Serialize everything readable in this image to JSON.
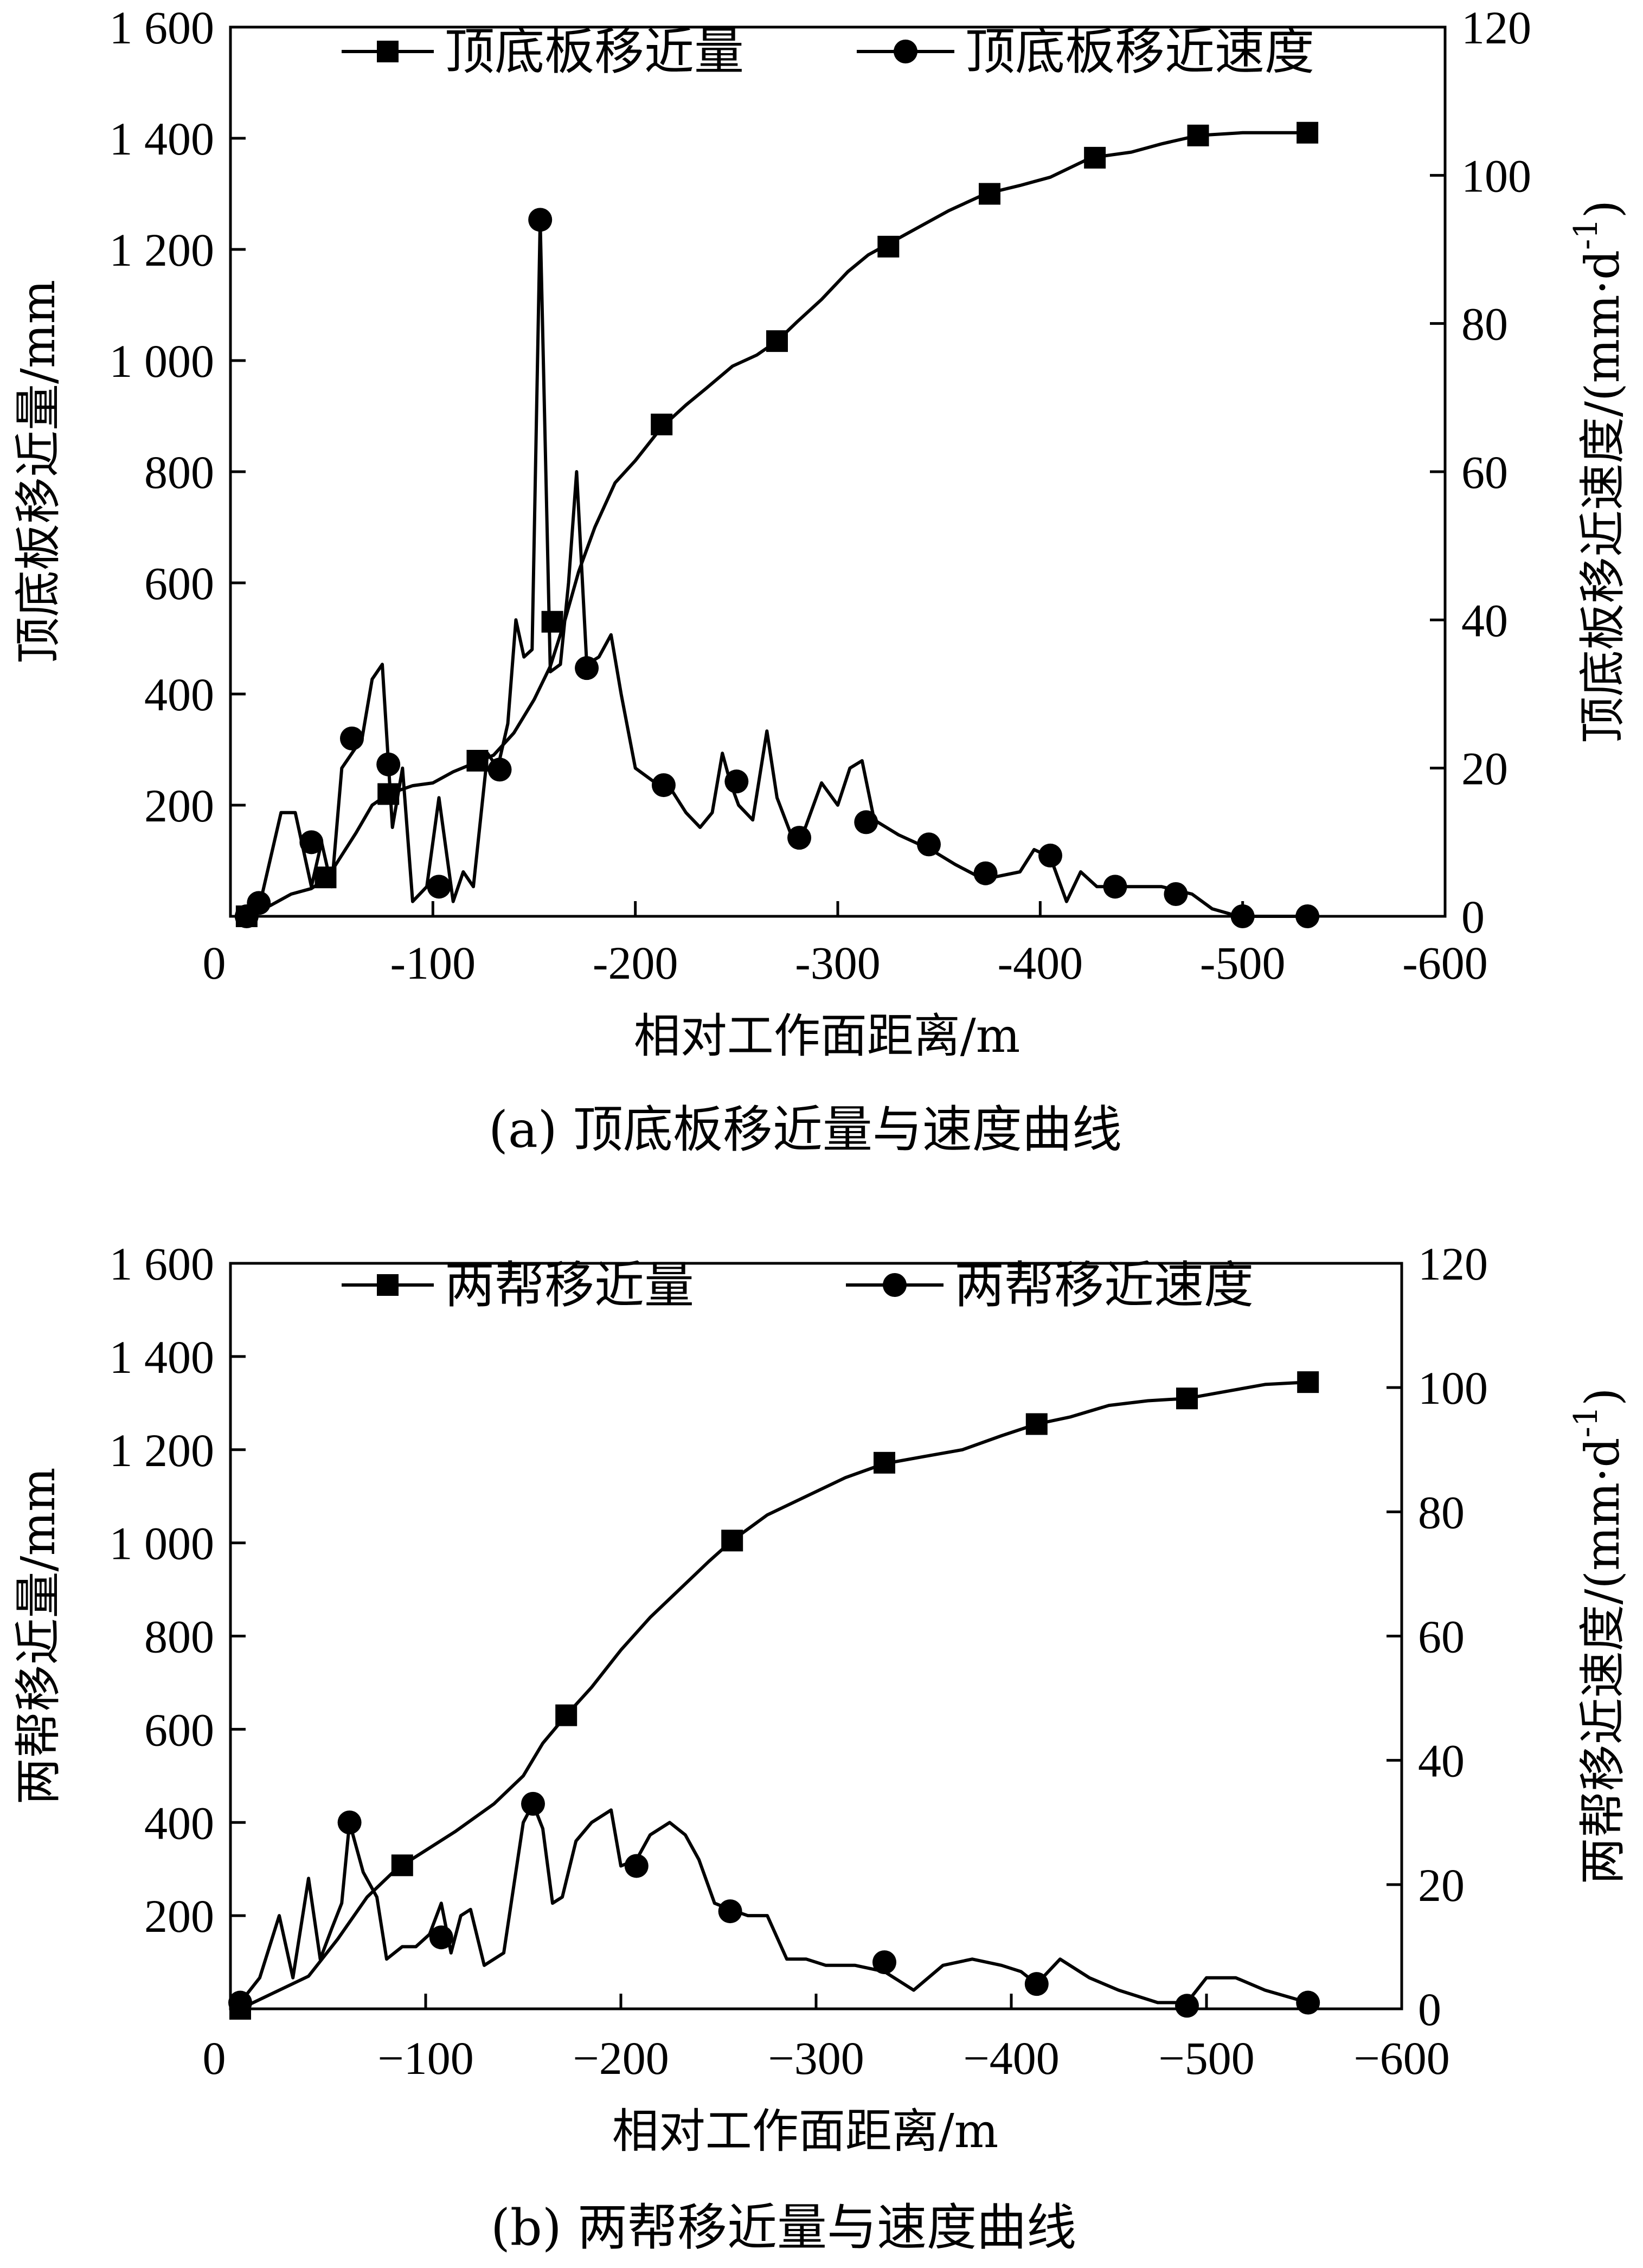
{
  "chart_data": [
    {
      "id": "a",
      "type": "line",
      "caption": "(a)  顶底板移近量与速度曲线",
      "xlabel": "相对工作面距离/m",
      "ylabel_left": "顶底板移近量/mm",
      "ylabel_right": "顶底板移近速度/(mm·d-1)",
      "xlim": [
        0,
        -600
      ],
      "ylim_left": [
        0,
        1600
      ],
      "ylim_right": [
        0,
        120
      ],
      "x_ticks": [
        "0",
        "-100",
        "-200",
        "-300",
        "-400",
        "-500",
        "-600"
      ],
      "y_left_ticks": [
        "1 600",
        "1 400",
        "1 200",
        "1 000",
        "800",
        "600",
        "400",
        "200"
      ],
      "y_right_ticks": [
        "120",
        "100",
        "80",
        "60",
        "40",
        "20",
        "0"
      ],
      "legend": [
        "顶底板移近量",
        "顶底板移近速度"
      ],
      "series": [
        {
          "name": "顶底板移近量",
          "axis": "left",
          "marker": "square",
          "x": [
            -8,
            -20,
            -30,
            -40,
            -48,
            -55,
            -62,
            -70,
            -78,
            -90,
            -100,
            -110,
            -120,
            -130,
            -140,
            -150,
            -158,
            -165,
            -172,
            -180,
            -190,
            -200,
            -213,
            -225,
            -235,
            -248,
            -260,
            -270,
            -280,
            -292,
            -305,
            -315,
            -325,
            -340,
            -355,
            -373,
            -390,
            -405,
            -425,
            -445,
            -460,
            -478,
            -500,
            -515,
            -532
          ],
          "y": [
            0,
            20,
            40,
            50,
            70,
            110,
            150,
            200,
            220,
            235,
            240,
            260,
            275,
            290,
            330,
            390,
            450,
            530,
            620,
            700,
            780,
            820,
            880,
            920,
            950,
            990,
            1010,
            1035,
            1070,
            1110,
            1160,
            1190,
            1210,
            1240,
            1270,
            1300,
            1315,
            1330,
            1365,
            1375,
            1390,
            1405,
            1410,
            1410,
            1410
          ],
          "marker_points": [
            [
              -8,
              0
            ],
            [
              -47,
              70
            ],
            [
              -78,
              220
            ],
            [
              -122,
              280
            ],
            [
              -159,
              530
            ],
            [
              -213,
              885
            ],
            [
              -270,
              1035
            ],
            [
              -325,
              1205
            ],
            [
              -375,
              1300
            ],
            [
              -427,
              1365
            ],
            [
              -478,
              1405
            ],
            [
              -532,
              1410
            ]
          ]
        },
        {
          "name": "顶底板移近速度",
          "axis": "right",
          "marker": "circle",
          "x": [
            -8,
            -14,
            -25,
            -32,
            -40,
            -45,
            -50,
            -55,
            -60,
            -65,
            -70,
            -75,
            -80,
            -85,
            -90,
            -97,
            -103,
            -110,
            -115,
            -120,
            -127,
            -132,
            -137,
            -141,
            -145,
            -149,
            -153,
            -158,
            -163,
            -167,
            -171,
            -176,
            -182,
            -188,
            -193,
            -200,
            -210,
            -218,
            -225,
            -232,
            -238,
            -243,
            -247,
            -251,
            -258,
            -265,
            -270,
            -277,
            -284,
            -292,
            -300,
            -306,
            -312,
            -318,
            -330,
            -346,
            -358,
            -372,
            -390,
            -397,
            -405,
            -413,
            -420,
            -428,
            -436,
            -448,
            -460,
            -475,
            -485,
            -498,
            -515,
            -532
          ],
          "y": [
            0,
            1,
            14,
            14,
            4,
            10,
            4,
            20,
            22,
            24,
            32,
            34,
            12,
            20,
            2,
            4,
            16,
            2,
            6,
            4,
            22,
            20,
            26,
            40,
            35,
            36,
            94,
            33,
            34,
            45,
            60,
            34,
            35,
            38,
            30,
            20,
            18,
            17,
            14,
            12,
            14,
            22,
            18,
            15,
            13,
            25,
            16,
            11,
            12,
            18,
            15,
            20,
            21,
            13,
            11,
            9,
            7,
            5,
            6,
            9,
            8,
            2,
            6,
            4,
            4,
            4,
            4,
            3,
            1,
            0,
            0,
            0
          ],
          "marker_points": [
            [
              -8,
              0
            ],
            [
              -14,
              1.8
            ],
            [
              -40,
              10
            ],
            [
              -60,
              24
            ],
            [
              -78,
              20.5
            ],
            [
              -103,
              4
            ],
            [
              -133,
              19.8
            ],
            [
              -153,
              94
            ],
            [
              -176,
              33.5
            ],
            [
              -214,
              17.7
            ],
            [
              -250,
              18.2
            ],
            [
              -281,
              10.6
            ],
            [
              -314,
              12.7
            ],
            [
              -345,
              9.7
            ],
            [
              -373,
              5.8
            ],
            [
              -405,
              8.2
            ],
            [
              -437,
              4
            ],
            [
              -467,
              3
            ],
            [
              -500,
              0
            ],
            [
              -532,
              0
            ]
          ]
        }
      ]
    },
    {
      "id": "b",
      "type": "line",
      "caption": "(b)  两帮移近量与速度曲线",
      "xlabel": "相对工作面距离/m",
      "ylabel_left": "两帮移近量/mm",
      "ylabel_right": "两帮移近速度/(mm·d-1)",
      "xlim": [
        0,
        -600
      ],
      "ylim_left": [
        0,
        1600
      ],
      "ylim_right": [
        0,
        120
      ],
      "x_ticks": [
        "0",
        "−100",
        "−200",
        "−300",
        "−400",
        "−500",
        "−600"
      ],
      "y_left_ticks": [
        "1 600",
        "1 400",
        "1 200",
        "1 000",
        "800",
        "600",
        "400",
        "200"
      ],
      "y_right_ticks": [
        "120",
        "100",
        "80",
        "60",
        "40",
        "20",
        "0"
      ],
      "legend": [
        "两帮移近量",
        "两帮移近速度"
      ],
      "series": [
        {
          "name": "两帮移近量",
          "axis": "left",
          "marker": "square",
          "x": [
            -5,
            -20,
            -40,
            -55,
            -70,
            -85,
            -100,
            -115,
            -135,
            -150,
            -160,
            -172,
            -185,
            -200,
            -215,
            -230,
            -245,
            -257,
            -275,
            -295,
            -315,
            -335,
            -355,
            -375,
            -395,
            -413,
            -430,
            -450,
            -470,
            -490,
            -510,
            -530,
            -552
          ],
          "y": [
            0,
            30,
            70,
            150,
            240,
            300,
            340,
            380,
            440,
            500,
            570,
            630,
            690,
            770,
            840,
            900,
            960,
            1005,
            1060,
            1100,
            1140,
            1170,
            1185,
            1200,
            1230,
            1255,
            1270,
            1295,
            1305,
            1310,
            1325,
            1340,
            1345
          ],
          "marker_points": [
            [
              -5,
              0
            ],
            [
              -88,
              308
            ],
            [
              -172,
              630
            ],
            [
              -257,
              1005
            ],
            [
              -335,
              1172
            ],
            [
              -413,
              1255
            ],
            [
              -490,
              1310
            ],
            [
              -552,
              1345
            ]
          ]
        },
        {
          "name": "两帮移近速度",
          "axis": "right",
          "marker": "circle",
          "x": [
            -5,
            -15,
            -25,
            -32,
            -40,
            -46,
            -52,
            -57,
            -61,
            -68,
            -75,
            -80,
            -88,
            -95,
            -102,
            -108,
            -113,
            -118,
            -123,
            -130,
            -140,
            -150,
            -155,
            -160,
            -165,
            -170,
            -177,
            -185,
            -195,
            -200,
            -208,
            -215,
            -225,
            -233,
            -240,
            -248,
            -256,
            -265,
            -275,
            -285,
            -295,
            -305,
            -320,
            -335,
            -350,
            -365,
            -380,
            -395,
            -405,
            -413,
            -425,
            -440,
            -455,
            -475,
            -490,
            -500,
            -515,
            -530,
            -552
          ],
          "y": [
            1,
            5,
            15,
            5,
            21,
            8,
            13,
            17,
            30,
            22,
            18,
            8,
            10,
            10,
            12,
            17,
            9,
            15,
            16,
            7,
            9,
            30,
            33,
            29,
            17,
            18,
            27,
            30,
            32,
            23,
            24,
            28,
            30,
            28,
            24,
            17,
            16,
            15,
            15,
            8,
            8,
            7,
            7,
            6,
            3,
            7,
            8,
            7,
            6,
            4,
            8,
            5,
            3,
            1,
            1,
            5,
            5,
            3,
            1
          ],
          "marker_points": [
            [
              -5,
              1
            ],
            [
              -61,
              30
            ],
            [
              -108,
              11.5
            ],
            [
              -155,
              33
            ],
            [
              -208,
              23
            ],
            [
              -256,
              15.7
            ],
            [
              -335,
              7.5
            ],
            [
              -413,
              4
            ],
            [
              -490,
              0.5
            ],
            [
              -552,
              1
            ]
          ]
        }
      ]
    }
  ]
}
